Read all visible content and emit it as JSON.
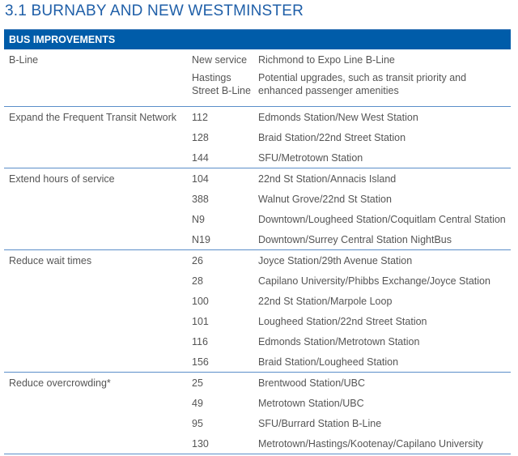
{
  "title": "3.1  BURNABY AND NEW WESTMINSTER",
  "header": "BUS IMPROVEMENTS",
  "groups": [
    {
      "label": "B-Line",
      "rows": [
        {
          "route": "New service",
          "desc": "Richmond to Expo Line B-Line"
        },
        {
          "route": "Hastings Street B-Line",
          "desc": "Potential upgrades, such as transit priority and enhanced passenger amenities"
        }
      ]
    },
    {
      "label": "Expand the Frequent Transit Network",
      "rows": [
        {
          "route": "112",
          "desc": "Edmonds Station/New West Station"
        },
        {
          "route": "128",
          "desc": "Braid Station/22nd Street Station"
        },
        {
          "route": "144",
          "desc": "SFU/Metrotown Station"
        }
      ]
    },
    {
      "label": "Extend hours of service",
      "rows": [
        {
          "route": "104",
          "desc": "22nd St Station/Annacis Island"
        },
        {
          "route": "388",
          "desc": "Walnut Grove/22nd St Station"
        },
        {
          "route": "N9",
          "desc": "Downtown/Lougheed Station/Coquitlam Central Station"
        },
        {
          "route": "N19",
          "desc": "Downtown/Surrey Central Station NightBus"
        }
      ]
    },
    {
      "label": "Reduce wait times",
      "rows": [
        {
          "route": "26",
          "desc": "Joyce Station/29th Avenue Station"
        },
        {
          "route": "28",
          "desc": "Capilano University/Phibbs Exchange/Joyce Station"
        },
        {
          "route": "100",
          "desc": "22nd St Station/Marpole Loop"
        },
        {
          "route": "101",
          "desc": "Lougheed Station/22nd Street Station"
        },
        {
          "route": "116",
          "desc": "Edmonds Station/Metrotown Station"
        },
        {
          "route": "156",
          "desc": "Braid Station/Lougheed Station"
        }
      ]
    },
    {
      "label": "Reduce overcrowding*",
      "rows": [
        {
          "route": "25",
          "desc": "Brentwood Station/UBC"
        },
        {
          "route": "49",
          "desc": "Metrotown Station/UBC"
        },
        {
          "route": "95",
          "desc": "SFU/Burrard Station B-Line"
        },
        {
          "route": "130",
          "desc": "Metrotown/Hastings/Kootenay/Capilano University"
        }
      ]
    }
  ],
  "colors": {
    "header_bg": "#005ca9",
    "title": "#1f5fa8",
    "rule": "#5b8ec9"
  }
}
